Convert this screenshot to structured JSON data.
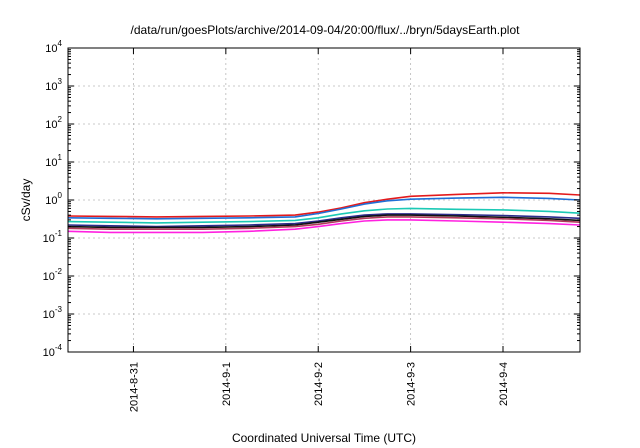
{
  "chart_data": {
    "type": "line",
    "title": "/data/run/goesPlots/archive/2014-09-04/20:00/flux/../bryn/5daysEarth.plot",
    "xlabel": "Coordinated Universal Time (UTC)",
    "ylabel": "cSv/day",
    "yscale": "log",
    "ylim": [
      0.0001,
      10000
    ],
    "yticks": [
      {
        "base": "10",
        "exp": "4"
      },
      {
        "base": "10",
        "exp": "3"
      },
      {
        "base": "10",
        "exp": "2"
      },
      {
        "base": "10",
        "exp": "1"
      },
      {
        "base": "10",
        "exp": "0"
      },
      {
        "base": "10",
        "exp": "-1"
      },
      {
        "base": "10",
        "exp": "-2"
      },
      {
        "base": "10",
        "exp": "-3"
      },
      {
        "base": "10",
        "exp": "-4"
      }
    ],
    "xlim": [
      "2014-08-30 07:00",
      "2014-09-04 20:00"
    ],
    "xticks": [
      "2014-8-31",
      "2014-9-1",
      "2014-9-2",
      "2014-9-3",
      "2014-9-4"
    ],
    "grid": true,
    "legend": "none",
    "x": [
      "2014-08-30 07:00",
      "2014-08-30 18:00",
      "2014-08-31 06:00",
      "2014-08-31 18:00",
      "2014-09-01 06:00",
      "2014-09-01 18:00",
      "2014-09-02 00:00",
      "2014-09-02 06:00",
      "2014-09-02 12:00",
      "2014-09-02 18:00",
      "2014-09-03 00:00",
      "2014-09-03 12:00",
      "2014-09-04 00:00",
      "2014-09-04 12:00",
      "2014-09-04 20:00"
    ],
    "series": [
      {
        "color": "#e31a1c",
        "values": [
          0.38,
          0.37,
          0.36,
          0.37,
          0.38,
          0.4,
          0.48,
          0.62,
          0.85,
          1.05,
          1.25,
          1.4,
          1.55,
          1.5,
          1.35
        ]
      },
      {
        "color": "#1f6fd6",
        "values": [
          0.34,
          0.33,
          0.32,
          0.33,
          0.34,
          0.36,
          0.44,
          0.58,
          0.78,
          0.95,
          1.05,
          1.12,
          1.18,
          1.1,
          1.0
        ]
      },
      {
        "color": "#1cc9b5",
        "values": [
          0.27,
          0.26,
          0.25,
          0.26,
          0.27,
          0.29,
          0.34,
          0.43,
          0.52,
          0.58,
          0.6,
          0.57,
          0.55,
          0.5,
          0.45
        ]
      },
      {
        "color": "#2c2c8c",
        "values": [
          0.22,
          0.21,
          0.2,
          0.21,
          0.22,
          0.24,
          0.28,
          0.34,
          0.4,
          0.43,
          0.43,
          0.41,
          0.39,
          0.36,
          0.33
        ]
      },
      {
        "color": "#111111",
        "values": [
          0.2,
          0.19,
          0.19,
          0.19,
          0.2,
          0.22,
          0.26,
          0.31,
          0.37,
          0.4,
          0.4,
          0.38,
          0.35,
          0.32,
          0.29
        ]
      },
      {
        "color": "#b03a5a",
        "values": [
          0.18,
          0.17,
          0.17,
          0.17,
          0.18,
          0.2,
          0.23,
          0.28,
          0.33,
          0.36,
          0.36,
          0.34,
          0.32,
          0.29,
          0.26
        ]
      },
      {
        "color": "#ff21e0",
        "values": [
          0.15,
          0.14,
          0.14,
          0.14,
          0.15,
          0.17,
          0.2,
          0.24,
          0.28,
          0.3,
          0.3,
          0.28,
          0.26,
          0.24,
          0.22
        ]
      }
    ]
  }
}
